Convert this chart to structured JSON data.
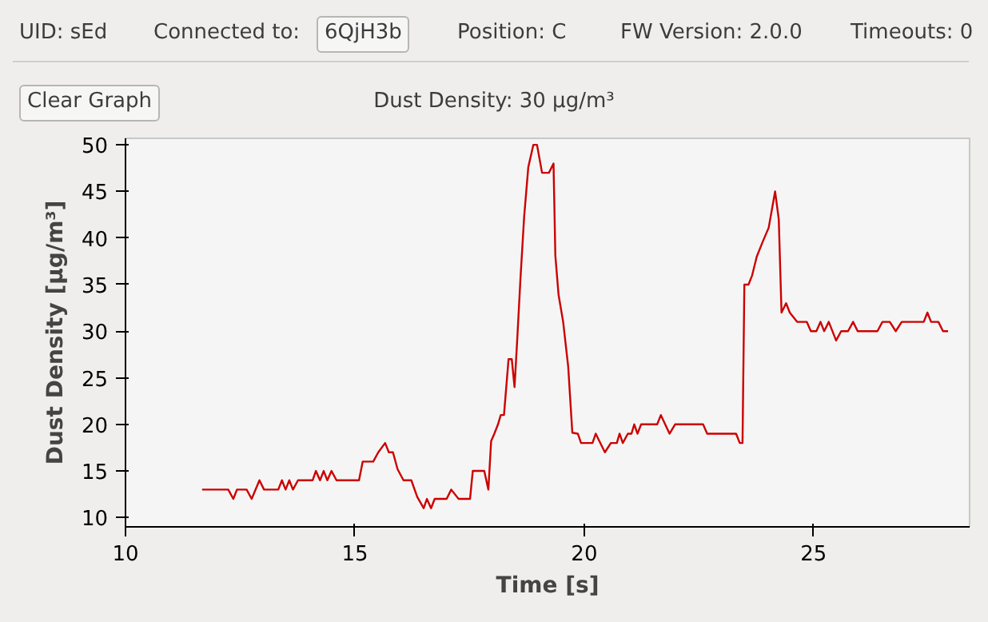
{
  "chart_data": {
    "type": "line",
    "title": "Dust Density: 30 µg/m³",
    "xlabel": "Time [s]",
    "ylabel": "Dust Density [µg/m³]",
    "annotations": [
      "UID:  sEd",
      "Connected to:",
      "6QjH3b",
      "Position:  C",
      "FW Version:  2.0.0",
      "Timeouts:  0",
      "Clear Graph"
    ],
    "xlim": [
      10,
      28.4
    ],
    "xticks": [
      10,
      15,
      20,
      25
    ],
    "ylim": [
      9,
      50.7
    ],
    "yticks": [
      10,
      15,
      20,
      25,
      30,
      35,
      40,
      45,
      50
    ],
    "grid": false,
    "marker": "none",
    "line_style": "solid",
    "series": [
      {
        "color": "#cc0000",
        "x": [
          11.67,
          12.24,
          12.35,
          12.43,
          12.64,
          12.75,
          12.92,
          13.02,
          13.33,
          13.41,
          13.49,
          13.57,
          13.65,
          13.76,
          14.08,
          14.15,
          14.24,
          14.32,
          14.4,
          14.49,
          14.6,
          15.09,
          15.17,
          15.4,
          15.51,
          15.66,
          15.74,
          15.83,
          15.93,
          16.06,
          16.23,
          16.36,
          16.5,
          16.57,
          16.66,
          16.74,
          17.0,
          17.1,
          17.26,
          17.51,
          17.57,
          17.82,
          17.91,
          17.97,
          18.04,
          18.12,
          18.18,
          18.25,
          18.35,
          18.42,
          18.48,
          18.54,
          18.61,
          18.69,
          18.78,
          18.89,
          18.97,
          19.08,
          19.23,
          19.33,
          19.37,
          19.44,
          19.54,
          19.65,
          19.74,
          19.86,
          19.93,
          20.18,
          20.25,
          20.45,
          20.58,
          20.71,
          20.77,
          20.84,
          20.95,
          21.03,
          21.09,
          21.16,
          21.24,
          21.59,
          21.67,
          21.86,
          21.98,
          22.59,
          22.68,
          23.31,
          23.39,
          23.45,
          23.49,
          23.58,
          23.66,
          23.76,
          23.89,
          24.02,
          24.16,
          24.24,
          24.3,
          24.4,
          24.48,
          24.64,
          24.85,
          24.94,
          25.06,
          25.15,
          25.23,
          25.33,
          25.49,
          25.6,
          25.75,
          25.86,
          25.96,
          26.39,
          26.5,
          26.66,
          26.79,
          26.92,
          27.4,
          27.48,
          27.56,
          27.72,
          27.82,
          27.93
        ],
        "values": [
          13,
          13,
          12,
          13,
          13,
          12,
          14,
          13,
          13,
          14,
          13,
          14,
          13,
          14,
          14,
          15,
          14,
          15,
          14,
          15,
          14,
          14,
          16,
          16,
          17,
          18,
          17,
          17,
          15.2,
          14,
          14,
          12.2,
          11,
          12,
          11,
          12,
          12,
          13,
          12,
          12,
          15,
          15,
          13,
          18.2,
          19,
          20,
          21,
          21,
          27,
          27,
          24,
          29.2,
          35.7,
          42.3,
          47.6,
          50,
          50,
          47,
          47,
          48,
          38.1,
          33.9,
          31,
          26.2,
          19.1,
          19,
          18,
          18,
          19,
          17,
          18,
          18,
          19,
          18,
          19,
          19,
          20,
          19,
          20,
          20,
          21,
          19,
          20,
          20,
          19,
          19,
          18,
          18,
          35,
          35,
          36,
          38,
          39.6,
          41.1,
          45,
          42,
          32,
          33,
          32,
          31,
          31,
          30,
          30,
          31,
          30,
          31,
          29,
          30,
          30,
          31,
          30,
          30,
          31,
          31,
          30,
          31,
          31,
          32,
          31,
          31,
          30,
          30
        ]
      }
    ]
  }
}
